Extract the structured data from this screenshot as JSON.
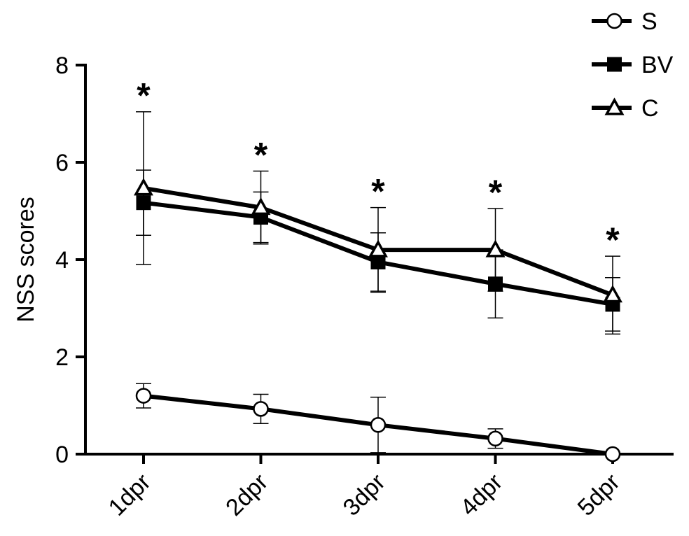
{
  "chart_data": {
    "type": "line",
    "title": "",
    "xlabel": "",
    "ylabel": "NSS scores",
    "categories": [
      "1dpr",
      "2dpr",
      "3dpr",
      "4dpr",
      "5dpr"
    ],
    "ylim": [
      0,
      8
    ],
    "yticks": [
      0,
      2,
      4,
      6,
      8
    ],
    "grid": false,
    "legend_position": "top-right",
    "significance_marker": "*",
    "significance_at": [
      0,
      1,
      2,
      3,
      4
    ],
    "series": [
      {
        "name": "S",
        "marker": "circle-open",
        "values": [
          1.2,
          0.93,
          0.6,
          0.32,
          0.0
        ],
        "errors": [
          0.25,
          0.3,
          0.57,
          0.2,
          0.0
        ]
      },
      {
        "name": "BV",
        "marker": "square-filled",
        "values": [
          5.17,
          4.87,
          3.95,
          3.5,
          3.08
        ],
        "errors": [
          0.67,
          0.52,
          0.6,
          0.7,
          0.55
        ]
      },
      {
        "name": "C",
        "marker": "triangle-open",
        "values": [
          5.47,
          5.07,
          4.2,
          4.2,
          3.27
        ],
        "errors": [
          1.57,
          0.75,
          0.87,
          0.85,
          0.8
        ]
      }
    ]
  }
}
